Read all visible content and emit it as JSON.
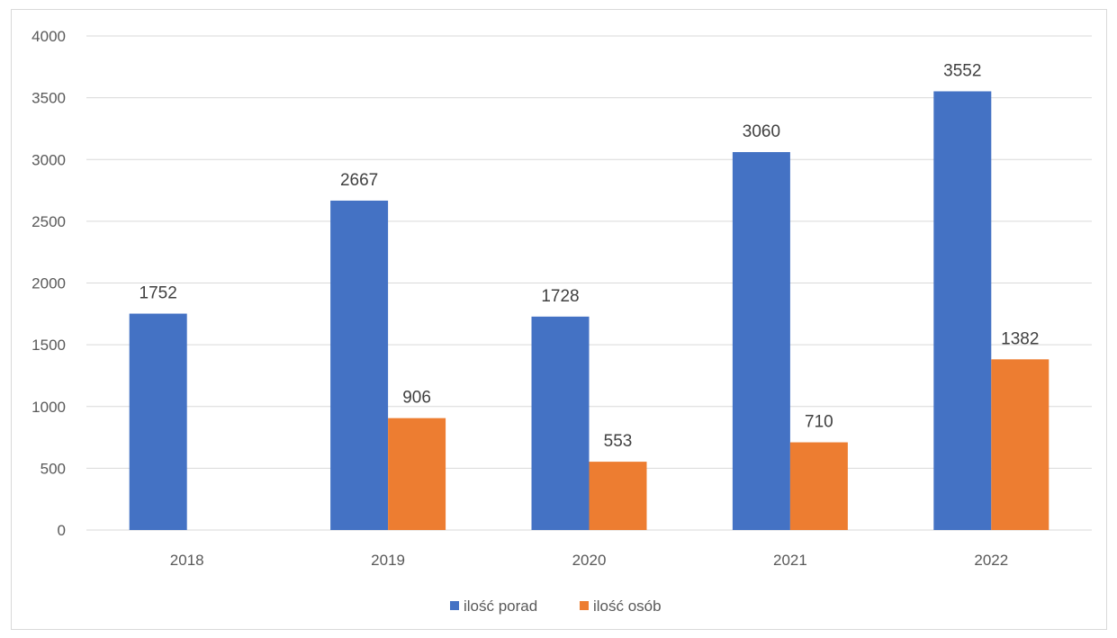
{
  "chart_data": {
    "type": "bar",
    "categories": [
      "2018",
      "2019",
      "2020",
      "2021",
      "2022"
    ],
    "series": [
      {
        "name": "ilość porad",
        "values": [
          1752,
          2667,
          1728,
          3060,
          3552
        ],
        "color": "#4472C4"
      },
      {
        "name": "ilość osób",
        "values": [
          null,
          906,
          553,
          710,
          1382
        ],
        "color": "#ED7D31"
      }
    ],
    "ylim": [
      0,
      4000
    ],
    "yticks": [
      0,
      500,
      1000,
      1500,
      2000,
      2500,
      3000,
      3500,
      4000
    ],
    "grid": true,
    "legend_position": "bottom"
  }
}
